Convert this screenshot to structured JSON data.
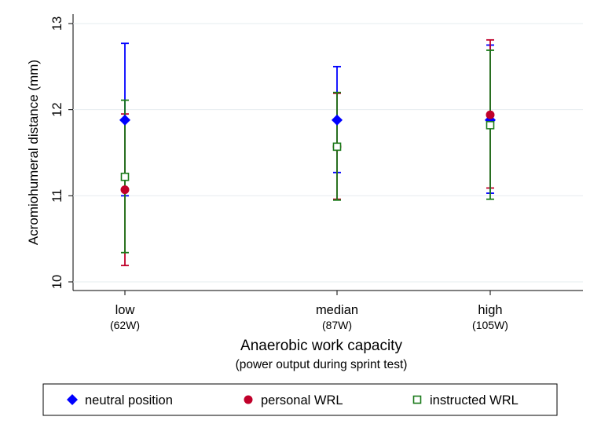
{
  "chart_data": {
    "type": "scatter",
    "ylabel": "Acromiohumeral distance (mm)",
    "xlabel": "Anaerobic work capacity",
    "xlabel_sub": "(power output during sprint test)",
    "ylim": [
      10,
      13
    ],
    "yticks": [
      10,
      11,
      12,
      13
    ],
    "grid": true,
    "legend_position": "bottom",
    "x": [
      62,
      87,
      105
    ],
    "categories": [
      {
        "label": "low",
        "sublabel": "(62W)"
      },
      {
        "label": "median",
        "sublabel": "(87W)"
      },
      {
        "label": "high",
        "sublabel": "(105W)"
      }
    ],
    "series": [
      {
        "name": "neutral position",
        "color": "#0000ff",
        "marker": "diamond",
        "values": [
          11.88,
          11.88,
          11.88
        ],
        "lower": [
          11.0,
          11.27,
          11.03
        ],
        "upper": [
          12.77,
          12.5,
          12.75
        ]
      },
      {
        "name": "personal WRL",
        "color": "#c0002a",
        "marker": "circle",
        "values": [
          11.07,
          11.57,
          11.94
        ],
        "lower": [
          10.19,
          10.96,
          11.09
        ],
        "upper": [
          11.95,
          12.19,
          12.81
        ]
      },
      {
        "name": "instructed WRL",
        "color": "#1a7a1a",
        "marker": "hollow-square",
        "values": [
          11.22,
          11.57,
          11.82
        ],
        "lower": [
          10.34,
          10.95,
          10.96
        ],
        "upper": [
          12.11,
          12.2,
          12.69
        ]
      }
    ]
  }
}
